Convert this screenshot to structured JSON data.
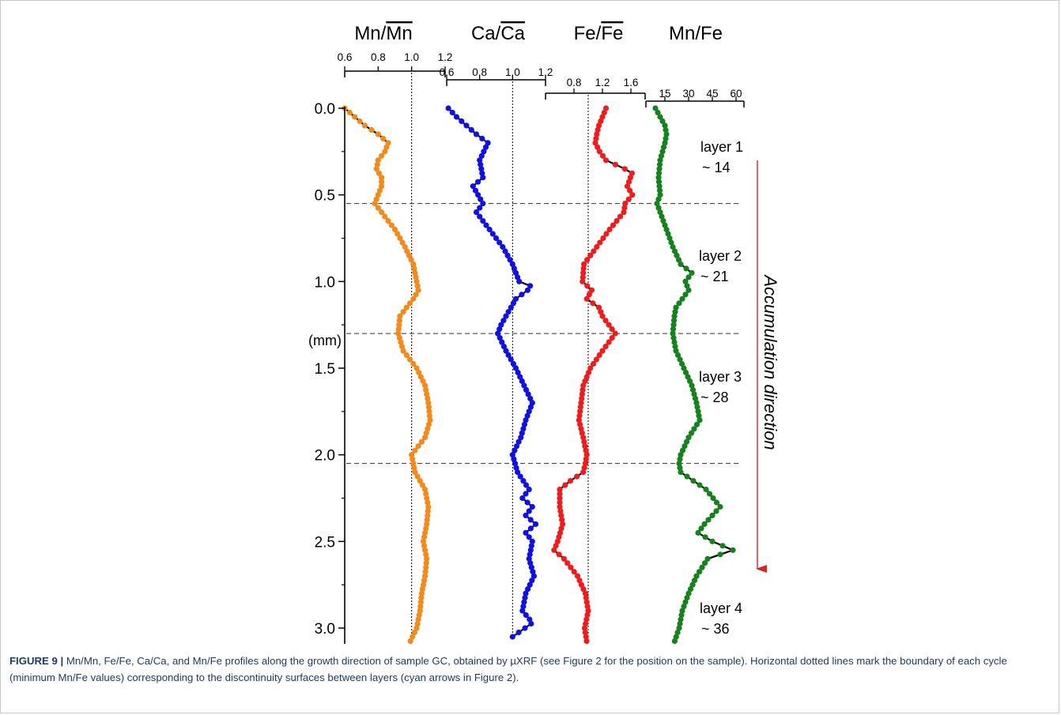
{
  "figure": {
    "caption": {
      "label": "FIGURE 9 |",
      "text": "Mn/Mn, Fe/Fe, Ca/Ca, and Mn/Fe profiles along the growth direction of sample GC, obtained by µXRF (see Figure 2 for the position on the sample). Horizontal dotted lines mark the boundary of each cycle (minimum Mn/Fe values) corresponding to the discontinuity surfaces between layers (cyan arrows in Figure 2)."
    }
  },
  "chart_data": {
    "type": "line",
    "ylabel": "(mm)",
    "ylim": [
      0.0,
      3.1
    ],
    "yticks": [
      "0.0",
      "0.5",
      "1.0",
      "1.5",
      "2.0",
      "2.5",
      "3.0"
    ],
    "y_direction": "downward",
    "boundaries_mm": [
      0.55,
      1.3,
      2.05
    ],
    "arrow_label": "Accumulation direction",
    "colors": {
      "mn": "#f28a1c",
      "ca": "#1010e0",
      "fe": "#ee1c1c",
      "mnfe": "#15821e",
      "arrow": "#e02020"
    },
    "layers": [
      {
        "name": "layer 1",
        "value": "~ 14"
      },
      {
        "name": "layer 2",
        "value": "~ 21"
      },
      {
        "name": "layer 3",
        "value": "~ 28"
      },
      {
        "name": "layer 4",
        "value": "~ 36"
      }
    ],
    "series": [
      {
        "key": "mn",
        "title": "Mn/Mn",
        "ticks": [
          "0.6",
          "0.8",
          "1.0",
          "1.2"
        ],
        "range": [
          0.6,
          1.2
        ],
        "ref": 1.0,
        "profile": [
          [
            0.0,
            0.6
          ],
          [
            0.05,
            0.66
          ],
          [
            0.1,
            0.72
          ],
          [
            0.15,
            0.8
          ],
          [
            0.2,
            0.86
          ],
          [
            0.25,
            0.84
          ],
          [
            0.3,
            0.8
          ],
          [
            0.35,
            0.79
          ],
          [
            0.4,
            0.82
          ],
          [
            0.45,
            0.82
          ],
          [
            0.5,
            0.8
          ],
          [
            0.55,
            0.78
          ],
          [
            0.6,
            0.82
          ],
          [
            0.7,
            0.9
          ],
          [
            0.8,
            0.96
          ],
          [
            0.9,
            1.01
          ],
          [
            1.0,
            1.03
          ],
          [
            1.05,
            1.04
          ],
          [
            1.1,
            1.01
          ],
          [
            1.15,
            0.97
          ],
          [
            1.2,
            0.93
          ],
          [
            1.3,
            0.92
          ],
          [
            1.4,
            0.95
          ],
          [
            1.5,
            1.03
          ],
          [
            1.6,
            1.08
          ],
          [
            1.7,
            1.1
          ],
          [
            1.8,
            1.11
          ],
          [
            1.9,
            1.08
          ],
          [
            2.0,
            1.0
          ],
          [
            2.1,
            1.02
          ],
          [
            2.2,
            1.08
          ],
          [
            2.3,
            1.1
          ],
          [
            2.4,
            1.09
          ],
          [
            2.5,
            1.07
          ],
          [
            2.6,
            1.09
          ],
          [
            2.7,
            1.08
          ],
          [
            2.8,
            1.06
          ],
          [
            2.9,
            1.05
          ],
          [
            3.0,
            1.03
          ],
          [
            3.08,
            0.99
          ]
        ]
      },
      {
        "key": "ca",
        "title": "Ca/Ca",
        "ticks": [
          "0.6",
          "0.8",
          "1.0",
          "1.2"
        ],
        "range": [
          0.6,
          1.2
        ],
        "ref": 1.0,
        "profile": [
          [
            0.0,
            0.61
          ],
          [
            0.05,
            0.66
          ],
          [
            0.1,
            0.72
          ],
          [
            0.15,
            0.78
          ],
          [
            0.2,
            0.85
          ],
          [
            0.3,
            0.8
          ],
          [
            0.4,
            0.82
          ],
          [
            0.45,
            0.76
          ],
          [
            0.5,
            0.79
          ],
          [
            0.55,
            0.82
          ],
          [
            0.6,
            0.78
          ],
          [
            0.7,
            0.86
          ],
          [
            0.8,
            0.94
          ],
          [
            0.9,
            1.0
          ],
          [
            1.0,
            1.04
          ],
          [
            1.03,
            1.12
          ],
          [
            1.1,
            1.02
          ],
          [
            1.2,
            0.96
          ],
          [
            1.25,
            0.93
          ],
          [
            1.3,
            0.91
          ],
          [
            1.4,
            0.96
          ],
          [
            1.5,
            1.02
          ],
          [
            1.6,
            1.07
          ],
          [
            1.7,
            1.12
          ],
          [
            1.8,
            1.08
          ],
          [
            1.9,
            1.05
          ],
          [
            2.0,
            1.0
          ],
          [
            2.1,
            1.03
          ],
          [
            2.2,
            1.1
          ],
          [
            2.25,
            1.06
          ],
          [
            2.3,
            1.12
          ],
          [
            2.35,
            1.08
          ],
          [
            2.4,
            1.14
          ],
          [
            2.45,
            1.08
          ],
          [
            2.5,
            1.12
          ],
          [
            2.6,
            1.1
          ],
          [
            2.7,
            1.13
          ],
          [
            2.8,
            1.08
          ],
          [
            2.9,
            1.06
          ],
          [
            2.97,
            1.12
          ],
          [
            3.05,
            1.0
          ]
        ]
      },
      {
        "key": "fe",
        "title": "Fe/Fe",
        "ticks": [
          "0.8",
          "1.2",
          "1.6"
        ],
        "range": [
          0.4,
          1.8
        ],
        "ref": 1.0,
        "profile": [
          [
            0.0,
            1.25
          ],
          [
            0.05,
            1.2
          ],
          [
            0.1,
            1.15
          ],
          [
            0.15,
            1.12
          ],
          [
            0.2,
            1.1
          ],
          [
            0.25,
            1.16
          ],
          [
            0.3,
            1.25
          ],
          [
            0.37,
            1.62
          ],
          [
            0.45,
            1.55
          ],
          [
            0.5,
            1.62
          ],
          [
            0.55,
            1.52
          ],
          [
            0.6,
            1.5
          ],
          [
            0.7,
            1.3
          ],
          [
            0.8,
            1.12
          ],
          [
            0.9,
            0.94
          ],
          [
            1.0,
            0.92
          ],
          [
            1.05,
            1.05
          ],
          [
            1.1,
            0.98
          ],
          [
            1.15,
            1.15
          ],
          [
            1.2,
            1.2
          ],
          [
            1.3,
            1.38
          ],
          [
            1.4,
            1.2
          ],
          [
            1.5,
            1.03
          ],
          [
            1.6,
            0.93
          ],
          [
            1.7,
            0.9
          ],
          [
            1.8,
            0.87
          ],
          [
            1.9,
            0.93
          ],
          [
            2.0,
            0.98
          ],
          [
            2.05,
            0.96
          ],
          [
            2.1,
            0.93
          ],
          [
            2.15,
            0.75
          ],
          [
            2.2,
            0.6
          ],
          [
            2.3,
            0.6
          ],
          [
            2.4,
            0.64
          ],
          [
            2.5,
            0.57
          ],
          [
            2.55,
            0.52
          ],
          [
            2.6,
            0.66
          ],
          [
            2.7,
            0.85
          ],
          [
            2.8,
            0.96
          ],
          [
            2.9,
            1.0
          ],
          [
            3.0,
            0.95
          ],
          [
            3.08,
            0.98
          ]
        ]
      },
      {
        "key": "mnfe",
        "title": "Mn/Fe",
        "ticks": [
          "15",
          "30",
          "45",
          "60"
        ],
        "range": [
          3,
          65
        ],
        "ref": null,
        "profile": [
          [
            0.0,
            9
          ],
          [
            0.05,
            12
          ],
          [
            0.1,
            15
          ],
          [
            0.15,
            16
          ],
          [
            0.2,
            15
          ],
          [
            0.3,
            12
          ],
          [
            0.4,
            11
          ],
          [
            0.5,
            12
          ],
          [
            0.55,
            10
          ],
          [
            0.6,
            12
          ],
          [
            0.7,
            16
          ],
          [
            0.8,
            20
          ],
          [
            0.9,
            25
          ],
          [
            0.95,
            32
          ],
          [
            1.0,
            28
          ],
          [
            1.05,
            30
          ],
          [
            1.1,
            26
          ],
          [
            1.15,
            22
          ],
          [
            1.2,
            21
          ],
          [
            1.3,
            20
          ],
          [
            1.4,
            22
          ],
          [
            1.5,
            27
          ],
          [
            1.6,
            32
          ],
          [
            1.7,
            35
          ],
          [
            1.8,
            37
          ],
          [
            1.9,
            30
          ],
          [
            2.0,
            25
          ],
          [
            2.05,
            24
          ],
          [
            2.1,
            25
          ],
          [
            2.2,
            41
          ],
          [
            2.3,
            50
          ],
          [
            2.35,
            45
          ],
          [
            2.4,
            40
          ],
          [
            2.45,
            36
          ],
          [
            2.5,
            45
          ],
          [
            2.55,
            58
          ],
          [
            2.6,
            42
          ],
          [
            2.7,
            35
          ],
          [
            2.8,
            30
          ],
          [
            2.9,
            26
          ],
          [
            3.0,
            24
          ],
          [
            3.08,
            21
          ]
        ]
      }
    ]
  }
}
